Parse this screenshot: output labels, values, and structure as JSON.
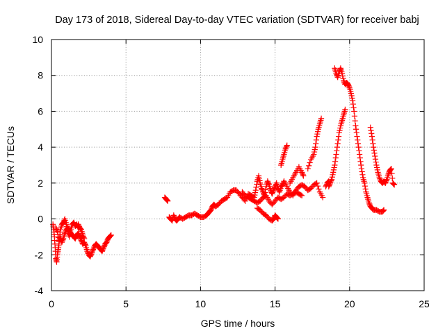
{
  "chart_data": {
    "type": "scatter",
    "title": "Day 173 of 2018, Sidereal Day-to-day VTEC variation (SDTVAR) for receiver babj",
    "xlabel": "GPS time / hours",
    "ylabel": "SDTVAR / TECUs",
    "xlim": [
      0,
      25
    ],
    "ylim": [
      -4,
      10
    ],
    "xticks": [
      0,
      5,
      10,
      15,
      20,
      25
    ],
    "yticks": [
      -4,
      -2,
      0,
      2,
      4,
      6,
      8,
      10
    ],
    "xtick_labels": [
      "0",
      "5",
      "10",
      "15",
      "20",
      "25"
    ],
    "ytick_labels": [
      "-4",
      "-2",
      "0",
      "2",
      "4",
      "6",
      "8",
      "10"
    ],
    "grid": true,
    "marker": "plus",
    "series": [
      {
        "name": "SDTVAR",
        "color": "#ff0000",
        "segments": [
          [
            [
              0.1,
              -0.3
            ],
            [
              0.15,
              -0.6
            ],
            [
              0.2,
              -1.0
            ],
            [
              0.25,
              -1.6
            ],
            [
              0.3,
              -2.2
            ],
            [
              0.35,
              -2.4
            ],
            [
              0.4,
              -2.0
            ],
            [
              0.45,
              -1.7
            ],
            [
              0.5,
              -1.4
            ],
            [
              0.55,
              -1.0
            ],
            [
              0.6,
              -0.6
            ],
            [
              0.7,
              -0.3
            ],
            [
              0.8,
              -0.2
            ],
            [
              0.9,
              0.0
            ],
            [
              1.0,
              -0.3
            ],
            [
              1.1,
              -0.7
            ],
            [
              1.2,
              -1.0
            ],
            [
              1.3,
              -0.6
            ],
            [
              1.4,
              -0.3
            ],
            [
              1.5,
              -0.2
            ],
            [
              1.6,
              -0.4
            ],
            [
              1.7,
              -0.3
            ],
            [
              1.8,
              -0.5
            ]
          ],
          [
            [
              0.3,
              -0.5
            ],
            [
              0.4,
              -0.7
            ],
            [
              0.5,
              -1.2
            ],
            [
              0.6,
              -1.0
            ],
            [
              0.7,
              -1.3
            ],
            [
              0.8,
              -1.1
            ],
            [
              0.9,
              -0.8
            ],
            [
              1.0,
              -0.6
            ],
            [
              1.1,
              -0.5
            ],
            [
              1.2,
              -0.6
            ],
            [
              1.3,
              -0.8
            ],
            [
              1.4,
              -0.9
            ],
            [
              1.5,
              -1.0
            ],
            [
              1.6,
              -1.1
            ],
            [
              1.7,
              -0.9
            ],
            [
              1.8,
              -0.8
            ],
            [
              1.9,
              -1.0
            ],
            [
              2.0,
              -1.2
            ],
            [
              2.1,
              -1.4
            ],
            [
              2.2,
              -1.3
            ],
            [
              2.3,
              -1.5
            ],
            [
              2.4,
              -1.8
            ],
            [
              2.5,
              -2.0
            ],
            [
              2.6,
              -2.1
            ],
            [
              2.7,
              -1.9
            ],
            [
              2.8,
              -1.7
            ],
            [
              2.9,
              -1.5
            ],
            [
              3.0,
              -1.4
            ],
            [
              3.1,
              -1.5
            ],
            [
              3.2,
              -1.6
            ],
            [
              3.3,
              -1.7
            ],
            [
              3.4,
              -1.8
            ],
            [
              3.5,
              -1.6
            ],
            [
              3.6,
              -1.4
            ],
            [
              3.7,
              -1.3
            ],
            [
              3.8,
              -1.1
            ],
            [
              3.9,
              -1.0
            ],
            [
              4.0,
              -0.9
            ]
          ],
          [
            [
              1.8,
              -0.3
            ],
            [
              1.9,
              -0.5
            ],
            [
              2.0,
              -0.6
            ],
            [
              2.1,
              -0.9
            ],
            [
              2.2,
              -1.1
            ]
          ],
          [
            [
              7.6,
              1.2
            ],
            [
              7.7,
              1.1
            ],
            [
              7.8,
              1.0
            ]
          ],
          [
            [
              7.9,
              0.1
            ],
            [
              8.0,
              0.0
            ],
            [
              8.1,
              -0.1
            ],
            [
              8.2,
              0.2
            ],
            [
              8.3,
              0.0
            ],
            [
              8.4,
              -0.1
            ],
            [
              8.5,
              0.0
            ],
            [
              8.6,
              0.1
            ],
            [
              8.8,
              0.0
            ],
            [
              9.0,
              0.1
            ],
            [
              9.2,
              0.2
            ],
            [
              9.4,
              0.2
            ],
            [
              9.6,
              0.3
            ],
            [
              9.8,
              0.2
            ],
            [
              10.0,
              0.1
            ],
            [
              10.2,
              0.1
            ],
            [
              10.4,
              0.2
            ],
            [
              10.5,
              0.3
            ],
            [
              10.6,
              0.4
            ],
            [
              10.7,
              0.5
            ],
            [
              10.8,
              0.7
            ],
            [
              10.9,
              0.8
            ],
            [
              11.0,
              0.7
            ],
            [
              11.2,
              0.8
            ],
            [
              11.4,
              1.0
            ],
            [
              11.6,
              1.1
            ],
            [
              11.8,
              1.2
            ],
            [
              12.0,
              1.5
            ],
            [
              12.2,
              1.6
            ],
            [
              12.4,
              1.6
            ],
            [
              12.6,
              1.4
            ],
            [
              12.8,
              1.2
            ],
            [
              13.0,
              1.0
            ],
            [
              13.2,
              1.4
            ],
            [
              13.4,
              1.3
            ],
            [
              13.6,
              1.2
            ],
            [
              13.7,
              1.6
            ],
            [
              13.8,
              2.1
            ],
            [
              13.9,
              2.4
            ],
            [
              14.0,
              2.0
            ],
            [
              14.1,
              1.7
            ],
            [
              14.2,
              1.5
            ],
            [
              14.3,
              1.3
            ],
            [
              14.4,
              1.8
            ],
            [
              14.5,
              2.1
            ],
            [
              14.6,
              1.9
            ],
            [
              14.7,
              1.6
            ],
            [
              14.8,
              1.4
            ],
            [
              14.9,
              1.6
            ],
            [
              15.0,
              1.8
            ],
            [
              15.1,
              2.0
            ],
            [
              15.2,
              1.7
            ],
            [
              15.3,
              1.5
            ],
            [
              15.4,
              1.8
            ],
            [
              15.5,
              1.9
            ],
            [
              15.6,
              2.1
            ],
            [
              15.8,
              1.8
            ],
            [
              16.0,
              1.5
            ],
            [
              16.2,
              1.3
            ],
            [
              16.4,
              1.6
            ],
            [
              16.6,
              1.8
            ],
            [
              16.8,
              1.9
            ],
            [
              17.0,
              1.8
            ],
            [
              17.2,
              1.6
            ],
            [
              17.4,
              1.7
            ],
            [
              17.6,
              1.9
            ],
            [
              17.8,
              2.0
            ],
            [
              18.0,
              1.5
            ],
            [
              18.2,
              1.2
            ]
          ],
          [
            [
              12.8,
              1.5
            ],
            [
              13.0,
              1.3
            ],
            [
              13.2,
              1.2
            ],
            [
              13.4,
              1.1
            ],
            [
              13.6,
              1.0
            ],
            [
              13.8,
              0.9
            ],
            [
              14.0,
              1.0
            ],
            [
              14.2,
              1.2
            ],
            [
              14.4,
              1.3
            ],
            [
              14.6,
              1.0
            ],
            [
              14.8,
              0.8
            ],
            [
              15.0,
              1.0
            ],
            [
              15.2,
              1.2
            ],
            [
              15.4,
              1.1
            ],
            [
              15.6,
              1.2
            ],
            [
              15.8,
              1.4
            ],
            [
              16.0,
              1.3
            ],
            [
              16.2,
              1.4
            ],
            [
              16.4,
              1.5
            ],
            [
              16.6,
              1.4
            ],
            [
              16.8,
              1.3
            ]
          ],
          [
            [
              13.8,
              0.6
            ],
            [
              14.0,
              0.5
            ],
            [
              14.2,
              0.3
            ],
            [
              14.4,
              0.2
            ],
            [
              14.6,
              0.0
            ],
            [
              14.8,
              -0.1
            ],
            [
              14.9,
              0.0
            ],
            [
              15.0,
              0.2
            ],
            [
              15.1,
              0.1
            ],
            [
              15.2,
              0.0
            ]
          ],
          [
            [
              15.4,
              3.0
            ],
            [
              15.5,
              3.3
            ],
            [
              15.6,
              3.6
            ],
            [
              15.7,
              3.9
            ],
            [
              15.8,
              4.1
            ]
          ],
          [
            [
              16.0,
              2.0
            ],
            [
              16.2,
              2.3
            ],
            [
              16.4,
              2.6
            ],
            [
              16.6,
              2.9
            ],
            [
              16.8,
              2.6
            ],
            [
              16.9,
              2.4
            ]
          ],
          [
            [
              17.2,
              2.8
            ],
            [
              17.4,
              3.3
            ],
            [
              17.6,
              3.6
            ],
            [
              17.7,
              4.0
            ],
            [
              17.8,
              4.6
            ],
            [
              17.9,
              5.0
            ],
            [
              18.0,
              5.3
            ],
            [
              18.1,
              5.6
            ]
          ],
          [
            [
              18.4,
              1.8
            ],
            [
              18.5,
              2.0
            ],
            [
              18.6,
              2.1
            ]
          ],
          [
            [
              18.6,
              1.8
            ],
            [
              18.7,
              2.0
            ],
            [
              18.8,
              2.2
            ],
            [
              18.9,
              2.6
            ],
            [
              19.0,
              3.0
            ],
            [
              19.1,
              3.6
            ],
            [
              19.2,
              4.2
            ],
            [
              19.3,
              4.8
            ],
            [
              19.4,
              5.2
            ],
            [
              19.5,
              5.5
            ],
            [
              19.6,
              5.8
            ],
            [
              19.7,
              6.1
            ]
          ],
          [
            [
              19.0,
              8.4
            ],
            [
              19.1,
              8.1
            ],
            [
              19.2,
              7.9
            ],
            [
              19.3,
              8.2
            ],
            [
              19.4,
              8.4
            ],
            [
              19.5,
              8.1
            ],
            [
              19.6,
              7.7
            ],
            [
              19.7,
              7.5
            ],
            [
              19.8,
              7.6
            ],
            [
              19.9,
              7.5
            ],
            [
              20.0,
              7.3
            ],
            [
              20.1,
              7.0
            ],
            [
              20.2,
              6.6
            ],
            [
              20.3,
              6.0
            ],
            [
              20.4,
              5.2
            ],
            [
              20.5,
              4.6
            ],
            [
              20.6,
              4.0
            ],
            [
              20.7,
              3.4
            ],
            [
              20.8,
              2.8
            ],
            [
              20.9,
              2.3
            ],
            [
              21.0,
              2.0
            ],
            [
              21.1,
              1.5
            ],
            [
              21.2,
              1.2
            ],
            [
              21.3,
              0.9
            ],
            [
              21.4,
              0.7
            ],
            [
              21.5,
              0.6
            ],
            [
              21.6,
              0.5
            ],
            [
              21.8,
              0.5
            ],
            [
              22.0,
              0.4
            ],
            [
              22.2,
              0.4
            ],
            [
              22.3,
              0.5
            ]
          ],
          [
            [
              21.4,
              5.1
            ],
            [
              21.5,
              4.6
            ],
            [
              21.6,
              4.0
            ],
            [
              21.7,
              3.5
            ],
            [
              21.8,
              3.0
            ],
            [
              21.9,
              2.6
            ],
            [
              22.0,
              2.3
            ],
            [
              22.1,
              2.1
            ],
            [
              22.2,
              2.0
            ],
            [
              22.3,
              2.1
            ],
            [
              22.4,
              2.0
            ],
            [
              22.5,
              2.2
            ],
            [
              22.6,
              2.5
            ],
            [
              22.7,
              2.7
            ],
            [
              22.8,
              2.8
            ],
            [
              22.9,
              2.0
            ],
            [
              23.0,
              1.9
            ]
          ]
        ]
      }
    ]
  }
}
